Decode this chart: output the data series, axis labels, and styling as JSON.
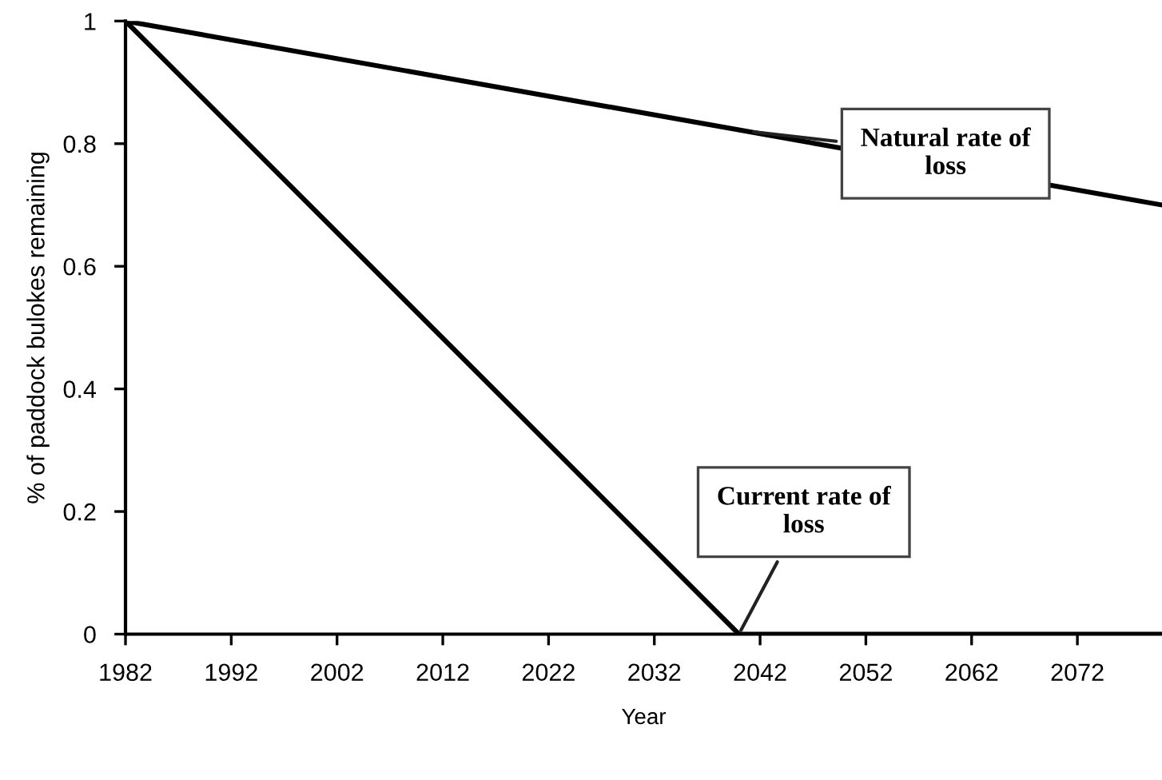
{
  "chart_data": {
    "type": "line",
    "xlabel": "Year",
    "ylabel": "% of paddock bulokes remaining",
    "series": [
      {
        "color": "#000000",
        "x": [
          1982,
          2080
        ],
        "values": [
          1,
          0.7
        ]
      },
      {
        "color": "#000000",
        "x": [
          1982,
          2040,
          2080
        ],
        "values": [
          1,
          0,
          0
        ]
      }
    ],
    "annotations": [
      {
        "text": "Natural rate of\nloss",
        "x": 2041,
        "y": 0.82
      },
      {
        "text": "Current rate of\nloss",
        "x": 2040,
        "y": 0
      }
    ],
    "xlim": [
      1982,
      2080
    ],
    "xticks": [
      1982,
      1992,
      2002,
      2012,
      2022,
      2032,
      2042,
      2052,
      2062,
      2072
    ],
    "ylim": [
      0,
      1
    ],
    "yticks": [
      0,
      0.2,
      0.4,
      0.6,
      0.8,
      1
    ],
    "grid": false,
    "legend": false,
    "marker": "none",
    "line_style": "solid"
  }
}
